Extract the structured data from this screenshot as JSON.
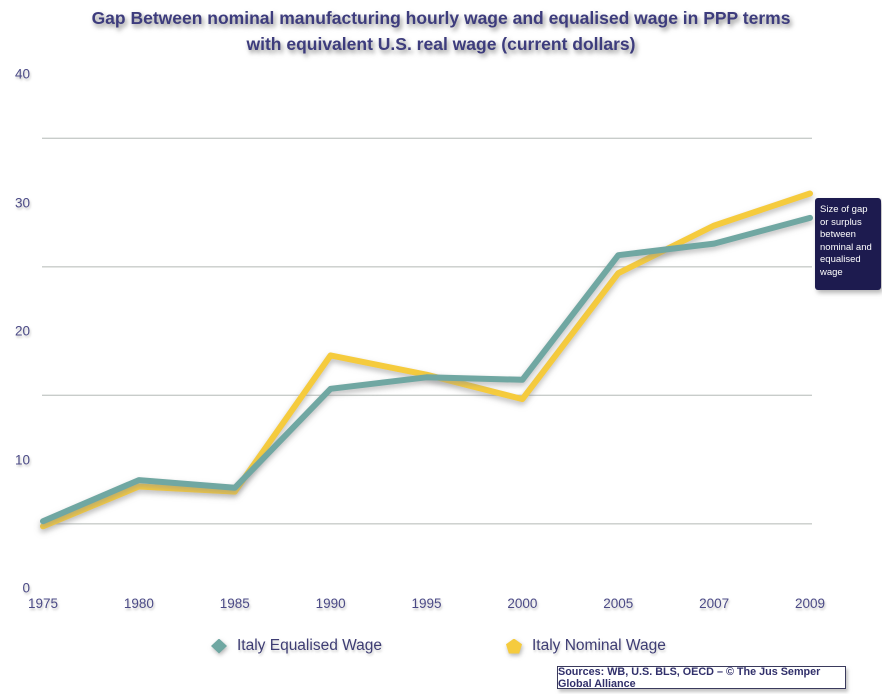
{
  "title": {
    "line1": "Gap Between nominal manufacturing hourly wage and equalised wage in PPP terms",
    "line2": "with equivalent U.S. real wage (current dollars)"
  },
  "annotation": {
    "text": "Size of gap or surplus between nominal and equalised wage"
  },
  "legend": [
    {
      "label": "Italy Equalised Wage",
      "color": "#6fa7a2",
      "marker": "diamond"
    },
    {
      "label": "Italy Nominal Wage",
      "color": "#f5cb3e",
      "marker": "pentagon"
    }
  ],
  "source_note": "Sources: WB, U.S. BLS, OECD – © The Jus Semper Global Alliance",
  "colors": {
    "equalised_line": "#6fa7a2",
    "nominal_line": "#f5cb3e",
    "title_text": "#3d3c7d",
    "axis_text": "#4b4a86",
    "gridline": "#c8ccca",
    "annotation_bg": "#1d1b4f",
    "annotation_text": "#ffffff"
  },
  "chart_data": {
    "type": "line",
    "title": "Gap Between nominal manufacturing hourly wage and equalised wage in PPP terms with equivalent U.S. real wage (current dollars)",
    "categories": [
      "1975",
      "1980",
      "1985",
      "1990",
      "1995",
      "2000",
      "2005",
      "2007",
      "2009"
    ],
    "series": [
      {
        "name": "Italy Equalised Wage",
        "color": "#6fa7a2",
        "values": [
          5.2,
          8.4,
          7.8,
          15.5,
          16.4,
          16.2,
          25.9,
          26.8,
          28.8
        ]
      },
      {
        "name": "Italy Nominal Wage",
        "color": "#f5cb3e",
        "values": [
          4.8,
          7.9,
          7.5,
          18.1,
          16.6,
          14.7,
          24.5,
          28.2,
          30.7
        ]
      }
    ],
    "xlabel": "",
    "ylabel": "",
    "ylim": [
      0,
      40
    ],
    "yticks": [
      0,
      10,
      20,
      30,
      40
    ],
    "gridlines": [
      5,
      15,
      25,
      35
    ],
    "grid": "horizontal",
    "legend_position": "bottom"
  }
}
